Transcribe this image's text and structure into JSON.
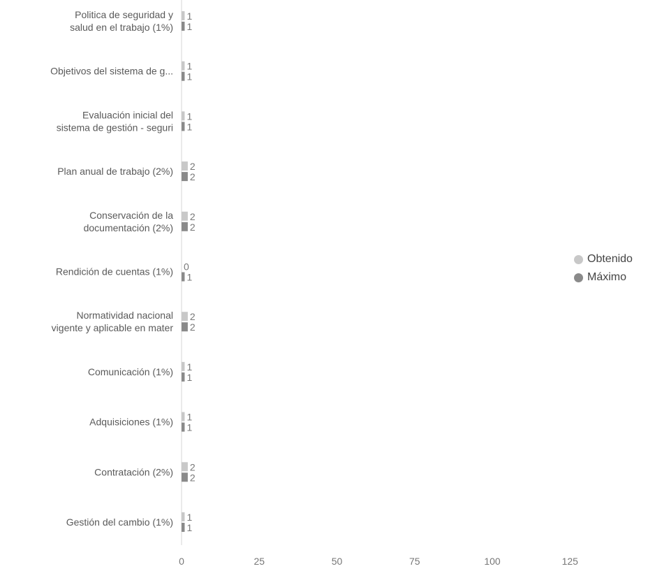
{
  "chart_data": {
    "type": "bar",
    "orientation": "horizontal",
    "categories": [
      [
        "Politica de seguridad y",
        "salud en el trabajo (1%)"
      ],
      [
        "Objetivos del sistema de g..."
      ],
      [
        "Evaluación inicial del",
        "sistema de gestión - seguri"
      ],
      [
        "Plan anual de trabajo (2%)"
      ],
      [
        "Conservación de la",
        "documentación (2%)"
      ],
      [
        "Rendición de cuentas (1%)"
      ],
      [
        "Normatividad nacional",
        "vigente y aplicable en mater"
      ],
      [
        "Comunicación (1%)"
      ],
      [
        "Adquisiciones (1%)"
      ],
      [
        "Contratación (2%)"
      ],
      [
        "Gestión del cambio (1%)"
      ]
    ],
    "series": [
      {
        "name": "Obtenido",
        "values": [
          1,
          1,
          1,
          2,
          2,
          0,
          2,
          1,
          1,
          2,
          1
        ],
        "color": "#c8c8c8"
      },
      {
        "name": "Máximo",
        "values": [
          1,
          1,
          1,
          2,
          2,
          1,
          2,
          1,
          1,
          2,
          1
        ],
        "color": "#8a8a8a"
      }
    ],
    "xticks": [
      "0",
      "25",
      "50",
      "75",
      "100",
      "125"
    ],
    "xlim": [
      0,
      125
    ],
    "grid": false,
    "legend_position": "right"
  }
}
